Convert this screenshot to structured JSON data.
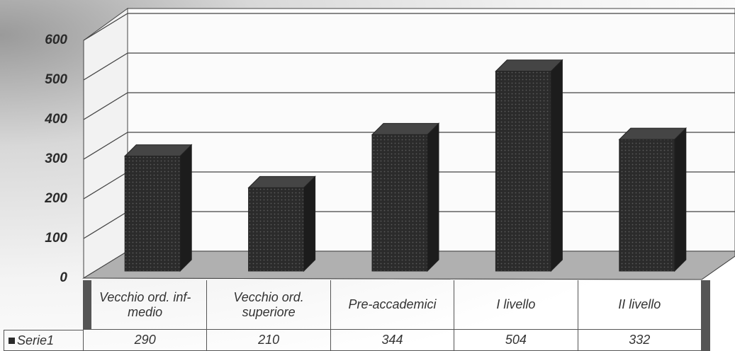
{
  "chart_data": {
    "type": "bar3d",
    "categories": [
      "Vecchio ord. inf-medio",
      "Vecchio ord. superiore",
      "Pre-accademici",
      "I livello",
      "II livello"
    ],
    "series": [
      {
        "name": "Serie1",
        "color": "#2b2b2b",
        "values": [
          290,
          210,
          344,
          504,
          332
        ]
      }
    ],
    "ylim": [
      0,
      600
    ],
    "yticks": [
      0,
      100,
      200,
      300,
      400,
      500,
      600
    ],
    "grid": true,
    "data_table": true
  }
}
